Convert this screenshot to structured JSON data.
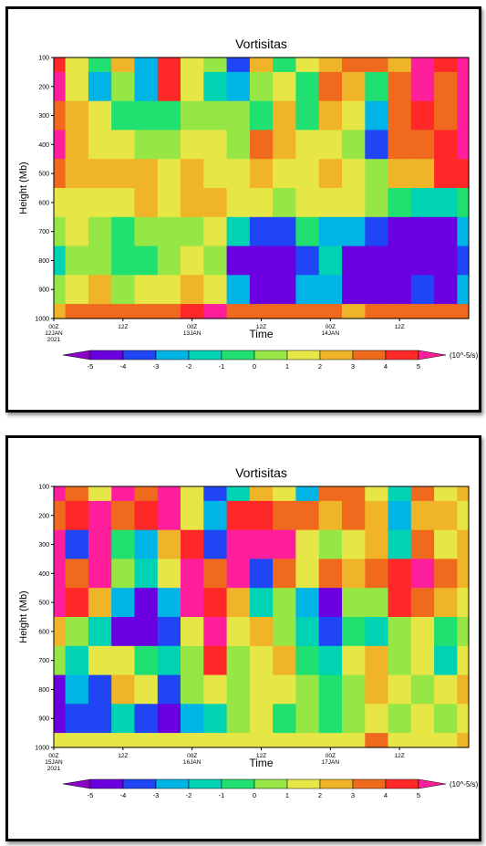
{
  "colorbar": {
    "levels": [
      -5,
      -4,
      -3,
      -2,
      -1,
      0,
      1,
      2,
      3,
      4,
      5
    ],
    "colors": [
      "#8a00c8",
      "#6a00e0",
      "#1f45f5",
      "#00b4e6",
      "#00d2b4",
      "#20e070",
      "#96e646",
      "#e6e646",
      "#f0b428",
      "#f06a1e",
      "#ff2828",
      "#ff1e9b"
    ],
    "unit_label": "(10^-5/s)"
  },
  "chart_data": [
    {
      "type": "heatmap",
      "title": "Vortisitas",
      "xlabel": "Time",
      "ylabel": "Height (Mb)",
      "y_ticks": [
        100,
        200,
        300,
        400,
        500,
        600,
        700,
        800,
        900,
        1000
      ],
      "y_range": [
        1000,
        100
      ],
      "x_ticks": [
        {
          "hour": 0,
          "lines": [
            "00Z",
            "12JAN",
            "2021"
          ]
        },
        {
          "hour": 12,
          "lines": [
            "12Z"
          ]
        },
        {
          "hour": 24,
          "lines": [
            "00Z",
            "13JAN"
          ]
        },
        {
          "hour": 36,
          "lines": [
            "12Z"
          ]
        },
        {
          "hour": 48,
          "lines": [
            "00Z",
            "14JAN"
          ]
        },
        {
          "hour": 60,
          "lines": [
            "12Z"
          ]
        }
      ],
      "x_range_hours": [
        0,
        72
      ],
      "grid": false,
      "z_unit": "10^-5/s",
      "z_grid_note": "rows 100..1000 Mb step 100, columns every 4 h from 00Z",
      "z": [
        [
          4,
          1,
          -1,
          2,
          -3,
          4,
          1,
          0,
          -4,
          2,
          -1,
          1,
          2,
          3,
          3,
          2,
          5,
          4,
          5
        ],
        [
          5,
          1,
          -3,
          0,
          -3,
          4,
          1,
          -2,
          -3,
          0,
          1,
          -1,
          3,
          2,
          -1,
          3,
          5,
          3,
          5
        ],
        [
          3,
          2,
          1,
          -1,
          -1,
          -1,
          0,
          0,
          0,
          -1,
          2,
          -1,
          2,
          1,
          -3,
          3,
          4,
          3,
          5
        ],
        [
          5,
          2,
          1,
          1,
          0,
          0,
          1,
          1,
          0,
          3,
          2,
          1,
          1,
          0,
          -4,
          3,
          3,
          4,
          5
        ],
        [
          3,
          2,
          2,
          2,
          2,
          1,
          2,
          1,
          1,
          2,
          1,
          1,
          2,
          1,
          0,
          2,
          2,
          4,
          4
        ],
        [
          1,
          1,
          1,
          1,
          2,
          1,
          2,
          2,
          1,
          1,
          0,
          1,
          1,
          1,
          0,
          -1,
          -2,
          -2,
          -1
        ],
        [
          0,
          1,
          0,
          -1,
          0,
          0,
          0,
          1,
          -2,
          -4,
          -4,
          -1,
          -3,
          -3,
          -4,
          -5,
          -5,
          -5,
          -3
        ],
        [
          -2,
          0,
          0,
          -1,
          -1,
          0,
          1,
          0,
          -5,
          -5,
          -5,
          -4,
          -2,
          -5,
          -5,
          -5,
          -5,
          -5,
          -4
        ],
        [
          0,
          1,
          2,
          0,
          1,
          1,
          2,
          1,
          -3,
          -5,
          -5,
          -3,
          -3,
          -5,
          -5,
          -5,
          -4,
          -5,
          -3
        ],
        [
          2,
          3,
          3,
          3,
          3,
          3,
          4,
          5,
          3,
          3,
          3,
          3,
          3,
          2,
          3,
          3,
          3,
          3,
          3
        ]
      ]
    },
    {
      "type": "heatmap",
      "title": "Vortisitas",
      "xlabel": "Time",
      "ylabel": "Height (Mb)",
      "y_ticks": [
        100,
        200,
        300,
        400,
        500,
        600,
        700,
        800,
        900,
        1000
      ],
      "y_range": [
        1000,
        100
      ],
      "x_ticks": [
        {
          "hour": 0,
          "lines": [
            "00Z",
            "15JAN",
            "2021"
          ]
        },
        {
          "hour": 12,
          "lines": [
            "12Z"
          ]
        },
        {
          "hour": 24,
          "lines": [
            "00Z",
            "16JAN"
          ]
        },
        {
          "hour": 36,
          "lines": [
            "12Z"
          ]
        },
        {
          "hour": 48,
          "lines": [
            "00Z",
            "17JAN"
          ]
        },
        {
          "hour": 60,
          "lines": [
            "12Z"
          ]
        }
      ],
      "x_range_hours": [
        0,
        72
      ],
      "grid": false,
      "z_unit": "10^-5/s",
      "z_grid_note": "rows 100..1000 Mb step 100, columns every 4 h from 00Z",
      "z": [
        [
          5,
          3,
          1,
          5,
          3,
          5,
          1,
          -4,
          -2,
          2,
          1,
          -3,
          3,
          3,
          1,
          -2,
          3,
          1,
          2
        ],
        [
          3,
          4,
          5,
          3,
          4,
          5,
          1,
          -3,
          4,
          4,
          3,
          3,
          2,
          3,
          2,
          -3,
          2,
          2,
          1
        ],
        [
          5,
          -4,
          5,
          -1,
          -3,
          2,
          4,
          -4,
          5,
          5,
          5,
          1,
          0,
          1,
          2,
          -2,
          3,
          1,
          2
        ],
        [
          5,
          3,
          5,
          0,
          -2,
          1,
          5,
          3,
          5,
          -4,
          3,
          1,
          3,
          2,
          3,
          4,
          5,
          3,
          2
        ],
        [
          5,
          4,
          2,
          -3,
          -5,
          -3,
          5,
          4,
          2,
          -2,
          0,
          -3,
          -5,
          0,
          0,
          4,
          3,
          2,
          1
        ],
        [
          2,
          0,
          -2,
          -5,
          -5,
          -4,
          1,
          5,
          1,
          2,
          0,
          -2,
          -4,
          -1,
          -2,
          0,
          1,
          -1,
          0
        ],
        [
          0,
          -2,
          1,
          1,
          -1,
          -2,
          0,
          4,
          0,
          1,
          2,
          -1,
          -2,
          1,
          2,
          0,
          1,
          -2,
          1
        ],
        [
          -5,
          -3,
          -4,
          2,
          1,
          -4,
          0,
          1,
          0,
          1,
          1,
          0,
          -1,
          0,
          2,
          1,
          0,
          1,
          2
        ],
        [
          -5,
          -4,
          -4,
          -2,
          -4,
          -5,
          -3,
          -2,
          0,
          1,
          -1,
          0,
          -1,
          0,
          1,
          0,
          1,
          0,
          1
        ],
        [
          1,
          1,
          1,
          1,
          1,
          1,
          1,
          1,
          1,
          1,
          1,
          1,
          1,
          1,
          3,
          1,
          1,
          1,
          2
        ]
      ]
    }
  ]
}
